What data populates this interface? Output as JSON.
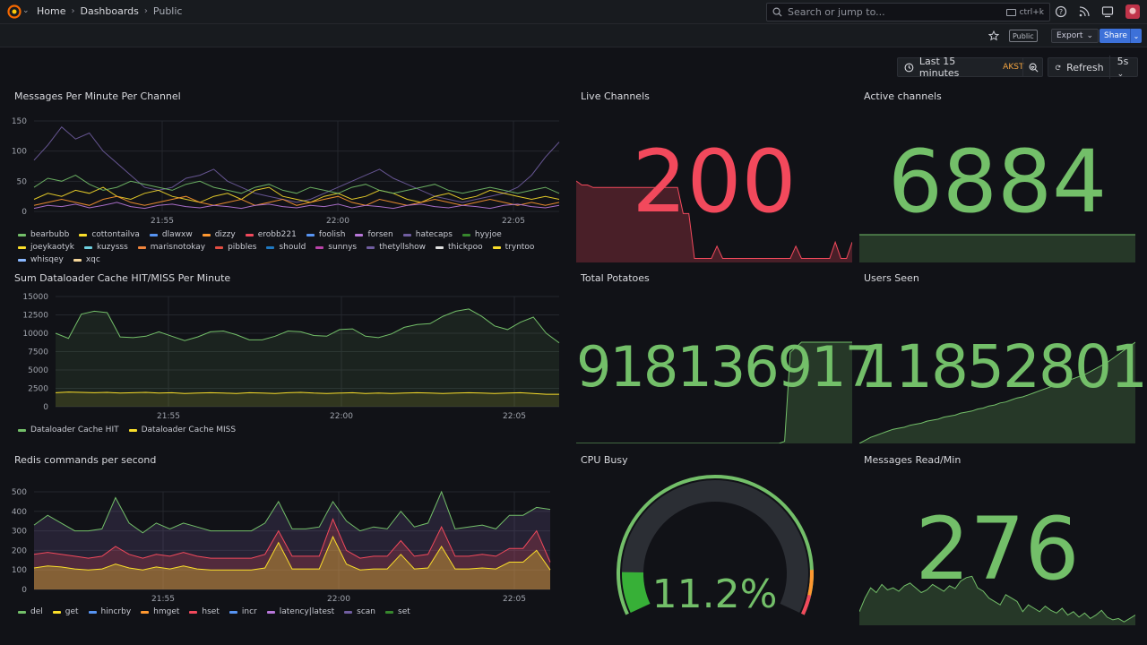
{
  "breadcrumb": [
    "Home",
    "Dashboards",
    "Public"
  ],
  "search": {
    "placeholder": "Search or jump to...",
    "shortcut": "ctrl+k"
  },
  "toolbar": {
    "public_badge": "Public",
    "export_label": "Export",
    "share_label": "Share"
  },
  "time_picker": {
    "range": "Last 15 minutes",
    "timezone": "AKST",
    "refresh_label": "Refresh",
    "interval": "5s"
  },
  "colors": {
    "green": "#73bf69",
    "red": "#f2495c",
    "yellow": "#fade2a",
    "accent": "#3d71d9"
  },
  "panels": {
    "messages_per_minute": {
      "title": "Messages Per Minute Per Channel"
    },
    "live_channels": {
      "title": "Live Channels",
      "value": "200"
    },
    "active_channels": {
      "title": "Active channels",
      "value": "6884"
    },
    "dataloader": {
      "title": "Sum Dataloader Cache HIT/MISS Per Minute"
    },
    "total_potatoes": {
      "title": "Total Potatoes",
      "value": "918136917"
    },
    "users_seen": {
      "title": "Users Seen",
      "value": "11852801"
    },
    "redis": {
      "title": "Redis commands per second"
    },
    "cpu_busy": {
      "title": "CPU Busy",
      "value": "11.2%",
      "fraction": 0.112
    },
    "messages_read": {
      "title": "Messages Read/Min",
      "value": "276"
    }
  },
  "chart_data": [
    {
      "type": "line",
      "title": "Messages Per Minute Per Channel",
      "x_ticks": [
        "21:55",
        "22:00",
        "22:05"
      ],
      "ylim": [
        0,
        150
      ],
      "y_ticks": [
        "150",
        "100",
        "50",
        "0"
      ],
      "legend": [
        "bearbubb",
        "cottontailva",
        "dlawxw",
        "dizzy",
        "erobb221",
        "foolish",
        "forsen",
        "hatecaps",
        "hyyjoe",
        "joeykaotyk",
        "kuzysss",
        "marisnotokay",
        "pibbles",
        "should",
        "sunnys",
        "thetyllshow",
        "thickpoo",
        "tryntoo",
        "whisqey",
        "xqc"
      ],
      "legend_colors": [
        "#73bf69",
        "#fade2a",
        "#5794f2",
        "#ff9830",
        "#f2495c",
        "#5794f2",
        "#b877d9",
        "#705da0",
        "#37872d",
        "#fade2a",
        "#6ed0e0",
        "#ef843c",
        "#e24d42",
        "#1f78c1",
        "#ba43a9",
        "#705da0",
        "#e0e0e0",
        "#fade2a",
        "#8ab8ff",
        "#f4d598"
      ],
      "series_approx": [
        {
          "values": [
            85,
            110,
            140,
            120,
            130,
            100,
            80,
            60,
            40,
            35,
            40,
            55,
            60,
            70,
            50,
            40,
            30,
            25,
            20,
            15,
            20,
            30,
            40,
            50,
            60,
            70,
            55,
            45,
            35,
            25,
            20,
            15,
            20,
            25,
            30,
            40,
            60,
            90,
            115
          ]
        },
        {
          "values": [
            20,
            30,
            25,
            35,
            30,
            40,
            25,
            20,
            30,
            35,
            25,
            20,
            15,
            25,
            30,
            20,
            35,
            40,
            25,
            20,
            15,
            25,
            30,
            20,
            25,
            35,
            30,
            20,
            15,
            25,
            30,
            20,
            25,
            35,
            30,
            25,
            20,
            25,
            20
          ]
        },
        {
          "values": [
            40,
            55,
            50,
            60,
            45,
            35,
            40,
            50,
            45,
            40,
            35,
            45,
            50,
            40,
            35,
            30,
            40,
            45,
            35,
            30,
            40,
            35,
            30,
            40,
            45,
            35,
            30,
            35,
            40,
            45,
            35,
            30,
            35,
            40,
            35,
            30,
            35,
            40,
            30
          ]
        },
        {
          "values": [
            10,
            15,
            20,
            15,
            10,
            20,
            25,
            15,
            10,
            15,
            20,
            25,
            15,
            10,
            15,
            20,
            10,
            15,
            20,
            10,
            15,
            20,
            25,
            15,
            10,
            20,
            15,
            10,
            15,
            20,
            15,
            10,
            15,
            20,
            15,
            10,
            15,
            10,
            15
          ]
        },
        {
          "values": [
            5,
            10,
            8,
            12,
            6,
            10,
            15,
            8,
            5,
            10,
            12,
            8,
            6,
            10,
            8,
            5,
            10,
            12,
            8,
            6,
            10,
            8,
            12,
            6,
            10,
            8,
            5,
            10,
            12,
            8,
            6,
            10,
            8,
            5,
            10,
            12,
            8,
            6,
            10
          ]
        }
      ]
    },
    {
      "type": "line",
      "title": "Sum Dataloader Cache HIT/MISS Per Minute",
      "x_ticks": [
        "21:55",
        "22:00",
        "22:05"
      ],
      "ylim": [
        0,
        15000
      ],
      "y_ticks": [
        "15000",
        "12500",
        "10000",
        "7500",
        "5000",
        "2500",
        "0"
      ],
      "series": [
        {
          "name": "Dataloader Cache HIT",
          "color": "#73bf69",
          "values": [
            10000,
            9300,
            12600,
            13000,
            12800,
            9500,
            9400,
            9600,
            10200,
            9600,
            9000,
            9500,
            10200,
            10300,
            9800,
            9100,
            9100,
            9600,
            10300,
            10200,
            9700,
            9600,
            10500,
            10600,
            9600,
            9400,
            9900,
            10800,
            11200,
            11300,
            12300,
            13000,
            13300,
            12300,
            11000,
            10500,
            11500,
            12200,
            10000,
            8700
          ]
        },
        {
          "name": "Dataloader Cache MISS",
          "color": "#fade2a",
          "values": [
            1900,
            2000,
            1950,
            1900,
            1950,
            1850,
            1900,
            1950,
            1850,
            1900,
            1800,
            1850,
            1900,
            1850,
            1800,
            1900,
            1850,
            1800,
            1900,
            1950,
            1850,
            1800,
            1850,
            1900,
            1800,
            1850,
            1800,
            1850,
            1900,
            1850,
            1800,
            1850,
            1900,
            1850,
            1800,
            1850,
            1900,
            1800,
            1700,
            1700
          ]
        }
      ]
    },
    {
      "type": "area",
      "title": "Redis commands per second",
      "x_ticks": [
        "21:55",
        "22:00",
        "22:05"
      ],
      "ylim": [
        0,
        500
      ],
      "y_ticks": [
        "500",
        "400",
        "300",
        "200",
        "100",
        "0"
      ],
      "legend": [
        "del",
        "get",
        "hincrby",
        "hmget",
        "hset",
        "incr",
        "latency|latest",
        "scan",
        "set"
      ],
      "legend_colors": [
        "#73bf69",
        "#fade2a",
        "#5794f2",
        "#ff9830",
        "#f2495c",
        "#5794f2",
        "#b877d9",
        "#705da0",
        "#37872d"
      ],
      "series": [
        {
          "name": "latency|latest",
          "values": [
            330,
            380,
            340,
            300,
            300,
            310,
            470,
            340,
            290,
            340,
            310,
            340,
            320,
            300,
            300,
            300,
            300,
            340,
            450,
            310,
            310,
            320,
            450,
            350,
            300,
            320,
            310,
            400,
            320,
            340,
            500,
            310,
            320,
            330,
            310,
            380,
            380,
            420,
            410
          ]
        },
        {
          "name": "scan",
          "values": [
            180,
            190,
            180,
            170,
            160,
            170,
            220,
            180,
            160,
            180,
            170,
            190,
            170,
            160,
            160,
            160,
            160,
            180,
            300,
            170,
            170,
            170,
            360,
            200,
            160,
            170,
            170,
            250,
            170,
            180,
            320,
            170,
            170,
            180,
            170,
            210,
            210,
            300,
            140
          ]
        },
        {
          "name": "get",
          "values": [
            110,
            120,
            115,
            105,
            100,
            105,
            130,
            110,
            100,
            115,
            105,
            120,
            105,
            100,
            100,
            100,
            100,
            110,
            240,
            105,
            105,
            105,
            270,
            130,
            100,
            105,
            105,
            180,
            105,
            110,
            220,
            105,
            105,
            110,
            105,
            140,
            140,
            200,
            100
          ]
        }
      ]
    },
    {
      "type": "area",
      "title": "Live Channels sparkline",
      "values": [
        100,
        95,
        95,
        92,
        92,
        92,
        92,
        92,
        92,
        92,
        92,
        92,
        92,
        92,
        92,
        92,
        92,
        92,
        92,
        60,
        60,
        5,
        5,
        5,
        5,
        20,
        5,
        5,
        5,
        5,
        5,
        5,
        5,
        5,
        5,
        5,
        5,
        5,
        5,
        20,
        5,
        5,
        5,
        5,
        5,
        5,
        25,
        5,
        5,
        25
      ]
    },
    {
      "type": "area",
      "title": "Total Potatoes sparkline",
      "values": [
        0,
        0,
        0,
        0,
        0,
        0,
        0,
        0,
        0,
        0,
        0,
        0,
        0,
        0,
        0,
        0,
        0,
        0,
        0,
        0,
        0,
        0,
        0,
        0,
        0,
        0,
        0,
        0,
        0,
        0,
        0,
        0,
        0,
        0,
        0,
        0,
        0,
        2,
        90,
        95,
        100,
        100,
        100,
        100,
        100,
        100,
        100,
        100,
        100,
        100
      ]
    },
    {
      "type": "area",
      "title": "Users Seen sparkline",
      "values": [
        0,
        3,
        6,
        8,
        10,
        12,
        14,
        15,
        16,
        18,
        19,
        20,
        22,
        23,
        24,
        26,
        27,
        28,
        30,
        31,
        32,
        34,
        35,
        37,
        38,
        40,
        41,
        43,
        45,
        46,
        48,
        50,
        52,
        54,
        56,
        58,
        60,
        62,
        64,
        66,
        68,
        71,
        74,
        77,
        80,
        84,
        88,
        92,
        96,
        100
      ]
    },
    {
      "type": "area",
      "title": "Messages Read/Min sparkline",
      "values": [
        20,
        40,
        55,
        48,
        60,
        52,
        55,
        50,
        58,
        62,
        55,
        48,
        52,
        60,
        55,
        50,
        58,
        54,
        65,
        70,
        72,
        55,
        50,
        40,
        35,
        30,
        45,
        40,
        35,
        20,
        30,
        25,
        20,
        28,
        22,
        18,
        25,
        15,
        20,
        12,
        18,
        10,
        15,
        22,
        12,
        8,
        10,
        5,
        10,
        15
      ]
    }
  ]
}
